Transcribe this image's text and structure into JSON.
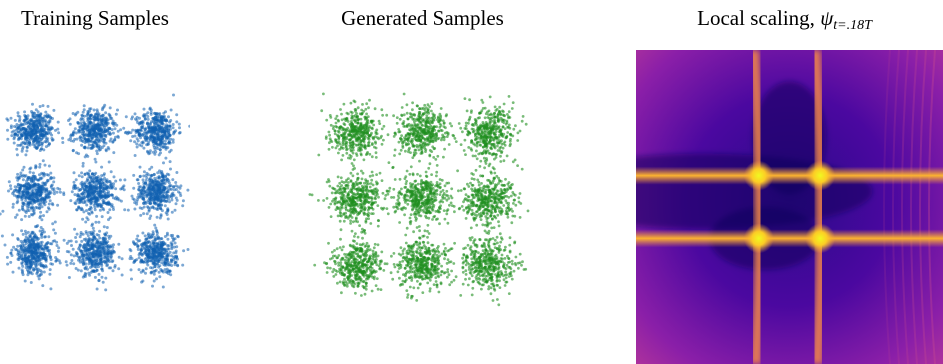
{
  "chart_data": [
    {
      "type": "scatter",
      "title": "Training Samples",
      "grid": false,
      "color": "#1060b0",
      "cluster_centers": {
        "x": [
          -1,
          0,
          1
        ],
        "y": [
          1,
          0,
          -1
        ]
      },
      "cluster_std": 0.17,
      "points_per_cluster": 420,
      "xlim": [
        -1.55,
        1.55
      ],
      "ylim": [
        -1.55,
        1.55
      ]
    },
    {
      "type": "scatter",
      "title": "Generated Samples",
      "grid": false,
      "color": "#1f8f1f",
      "cluster_centers": {
        "x": [
          -1,
          0,
          1
        ],
        "y": [
          1,
          0,
          -1
        ]
      },
      "cluster_std": 0.19,
      "points_per_cluster": 420,
      "xlim": [
        -1.55,
        1.55
      ],
      "ylim": [
        -1.55,
        1.55
      ]
    },
    {
      "type": "heatmap",
      "title_text": "Local scaling, ",
      "title_symbol": "ψ",
      "title_subscript": "t=.18T",
      "colormap": "plasma",
      "grid": false,
      "bright_lines": {
        "x": [
          -0.5,
          0.5
        ],
        "y": [
          0.5,
          -0.5
        ]
      },
      "xlim": [
        -2.5,
        2.5
      ],
      "ylim": [
        -2.5,
        2.5
      ]
    }
  ]
}
